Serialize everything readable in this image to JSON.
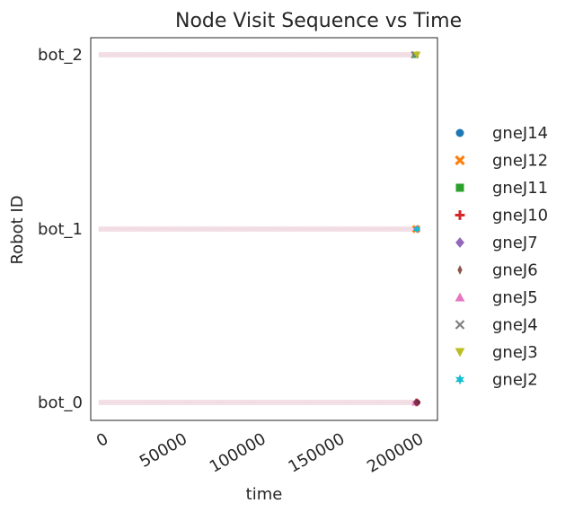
{
  "chart_data": {
    "type": "scatter",
    "title": "Node Visit Sequence vs Time",
    "xlabel": "time",
    "ylabel": "Robot ID",
    "xlim": [
      -5000,
      215000
    ],
    "x_ticks": [
      "0",
      "50000",
      "100000",
      "150000",
      "200000"
    ],
    "x_tick_values": [
      0,
      50000,
      100000,
      150000,
      200000
    ],
    "categories": [
      "bot_0",
      "bot_1",
      "bot_2"
    ],
    "grid": false,
    "legend_position": "right",
    "series": [
      {
        "name": "gneJ14",
        "marker": "circle",
        "color": "#1f77b4",
        "points": [
          {
            "x": 202000,
            "y": "bot_0"
          }
        ]
      },
      {
        "name": "gneJ12",
        "marker": "x",
        "color": "#ff7f0e",
        "points": [
          {
            "x": 201500,
            "y": "bot_1"
          }
        ]
      },
      {
        "name": "gneJ11",
        "marker": "square",
        "color": "#2ca02c",
        "points": [
          {
            "x": 201000,
            "y": "bot_2"
          }
        ]
      },
      {
        "name": "gneJ10",
        "marker": "plus",
        "color": "#d62728",
        "points": [
          {
            "x": 201800,
            "y": "bot_0"
          }
        ]
      },
      {
        "name": "gneJ7",
        "marker": "diamond",
        "color": "#9467bd",
        "points": [
          {
            "x": 202000,
            "y": "bot_1"
          }
        ]
      },
      {
        "name": "gneJ6",
        "marker": "thin_diamond",
        "color": "#8c564b",
        "points": [
          {
            "x": 202200,
            "y": "bot_0"
          }
        ]
      },
      {
        "name": "gneJ5",
        "marker": "triangle_up",
        "color": "#e377c2",
        "points": [
          {
            "x": 201000,
            "y": "bot_0"
          }
        ]
      },
      {
        "name": "gneJ4",
        "marker": "x_thin",
        "color": "#7f7f7f",
        "points": [
          {
            "x": 200500,
            "y": "bot_2"
          }
        ]
      },
      {
        "name": "gneJ3",
        "marker": "triangle_down",
        "color": "#bcbd22",
        "points": [
          {
            "x": 202000,
            "y": "bot_2"
          }
        ]
      },
      {
        "name": "gneJ2",
        "marker": "star",
        "color": "#17becf",
        "points": [
          {
            "x": 202000,
            "y": "bot_1"
          }
        ]
      }
    ],
    "dense_band": {
      "x_range": [
        0,
        200000
      ],
      "color": "#f3e0e6",
      "note_color": "#e8c8d2"
    }
  }
}
